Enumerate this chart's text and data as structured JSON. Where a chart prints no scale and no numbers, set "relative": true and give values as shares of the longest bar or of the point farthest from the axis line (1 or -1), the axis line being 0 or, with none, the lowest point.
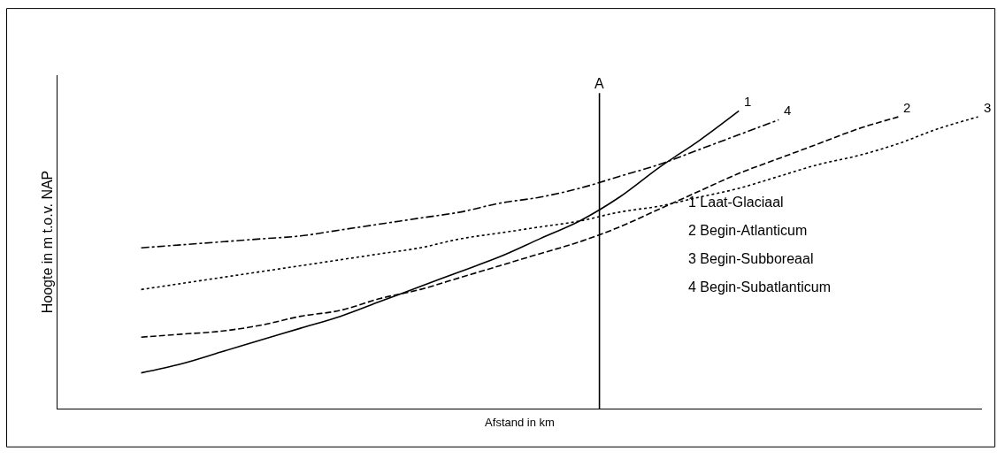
{
  "chart_data": {
    "type": "line",
    "relative": true,
    "xlabel": "Afstand in km",
    "ylabel": "Hoogte in m t.o.v. NAP",
    "categories": [
      null,
      null,
      null,
      null,
      null,
      null,
      null,
      null,
      null,
      null,
      null,
      null,
      null,
      null,
      null,
      null,
      null,
      null,
      null,
      null,
      null,
      null
    ],
    "series": [
      {
        "name": "1",
        "color": "#000000",
        "line_style": "solid",
        "values": [
          0.12,
          0.15,
          0.19,
          0.23,
          0.27,
          0.31,
          0.36,
          0.41,
          0.46,
          0.51,
          0.57,
          0.63,
          0.71,
          0.81,
          0.9,
          1.0,
          null,
          null,
          null,
          null,
          null,
          null
        ]
      },
      {
        "name": "2",
        "color": "#000000",
        "line_style": "dashed",
        "values": [
          0.24,
          0.25,
          0.26,
          0.28,
          0.31,
          0.33,
          0.37,
          0.4,
          0.44,
          0.48,
          0.52,
          0.56,
          0.61,
          0.67,
          0.73,
          0.79,
          0.84,
          0.89,
          0.94,
          0.98,
          null,
          null
        ]
      },
      {
        "name": "3",
        "color": "#000000",
        "line_style": "dotted",
        "values": [
          0.4,
          0.42,
          0.44,
          0.46,
          0.48,
          0.5,
          0.52,
          0.54,
          0.57,
          0.59,
          0.61,
          0.63,
          0.66,
          0.68,
          0.71,
          0.74,
          0.78,
          0.82,
          0.85,
          0.89,
          0.94,
          0.98
        ]
      },
      {
        "name": "4",
        "color": "#000000",
        "line_style": "dashdot",
        "values": [
          0.54,
          0.55,
          0.56,
          0.57,
          0.58,
          0.6,
          0.62,
          0.64,
          0.66,
          0.69,
          0.71,
          0.74,
          0.78,
          0.82,
          0.87,
          0.92,
          0.97,
          null,
          null,
          null,
          null,
          null
        ]
      }
    ],
    "annotations": [
      "A",
      "1 Laat-Glaciaal",
      "2 Begin-Atlanticum",
      "3 Begin-Subboreaal",
      "4 Begin-Subatlanticum"
    ],
    "legend": false,
    "marker": "none"
  }
}
